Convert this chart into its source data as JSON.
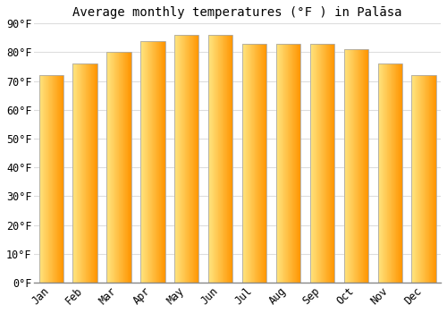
{
  "title": "Average monthly temperatures (°F ) in Palāsa",
  "months": [
    "Jan",
    "Feb",
    "Mar",
    "Apr",
    "May",
    "Jun",
    "Jul",
    "Aug",
    "Sep",
    "Oct",
    "Nov",
    "Dec"
  ],
  "values": [
    72,
    76,
    80,
    84,
    86,
    86,
    83,
    83,
    83,
    81,
    76,
    72
  ],
  "bar_color_left": "#FFE080",
  "bar_color_mid": "#FFAA00",
  "bar_color_right": "#FF9500",
  "background_color": "#ffffff",
  "grid_color": "#dddddd",
  "border_color": "#aaaaaa",
  "ylim": [
    0,
    90
  ],
  "yticks": [
    0,
    10,
    20,
    30,
    40,
    50,
    60,
    70,
    80,
    90
  ],
  "ytick_labels": [
    "0°F",
    "10°F",
    "20°F",
    "30°F",
    "40°F",
    "50°F",
    "60°F",
    "70°F",
    "80°F",
    "90°F"
  ],
  "title_fontsize": 10,
  "tick_fontsize": 8.5,
  "bar_width": 0.72
}
